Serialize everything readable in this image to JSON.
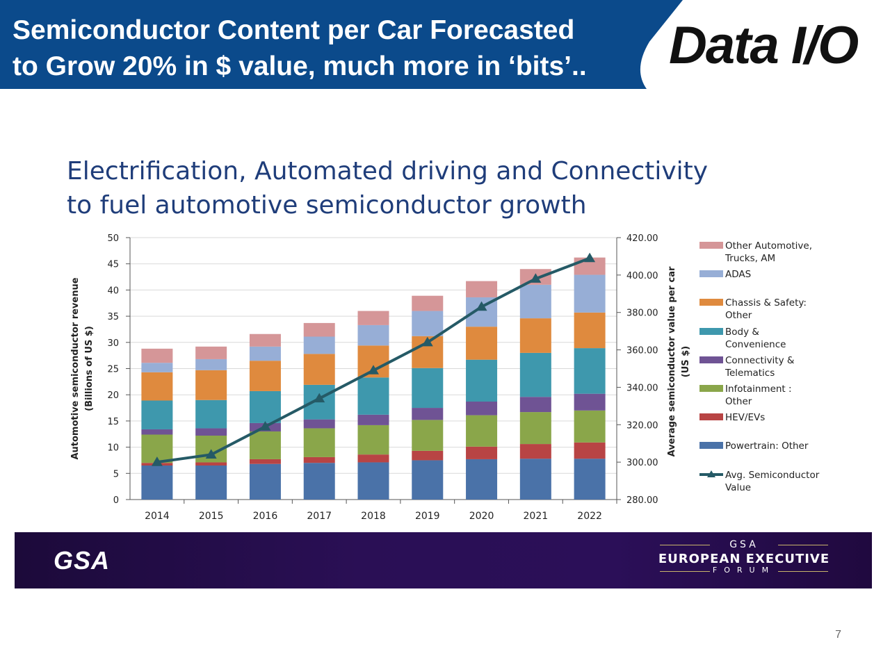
{
  "slide": {
    "header_line1": "Semiconductor Content per Car Forecasted",
    "header_line2": "to Grow 20% in $ value, much more in ‘bits’..",
    "header_color": "#0b4a8b",
    "logo_text": "Data I/O",
    "page_number": "7"
  },
  "footer": {
    "left_logo": "GSA",
    "line1": "GSA",
    "line2": "EUROPEAN EXECUTIVE",
    "line3": "FORUM"
  },
  "chart_data": {
    "type": "bar",
    "stacked": true,
    "title_line1": "Electrification, Automated driving and Connectivity",
    "title_line2": "to fuel automotive semiconductor growth",
    "categories": [
      "2014",
      "2015",
      "2016",
      "2017",
      "2018",
      "2019",
      "2020",
      "2021",
      "2022"
    ],
    "ylabel_line1": "Automotive semiconductor revenue",
    "ylabel_line2": "(Billions of US $)",
    "ylim": [
      0,
      50
    ],
    "yticks": [
      "0",
      "5",
      "10",
      "15",
      "20",
      "25",
      "30",
      "35",
      "40",
      "45",
      "50"
    ],
    "y2label_line1": "Average semiconductor value per car",
    "y2label_line2": "(US $)",
    "y2lim": [
      280,
      420
    ],
    "y2ticks": [
      "280.00",
      "300.00",
      "320.00",
      "340.00",
      "360.00",
      "380.00",
      "400.00",
      "420.00"
    ],
    "grid": true,
    "legend_position": "right",
    "series": [
      {
        "name": "Powertrain: Other",
        "color": "#4a72a8",
        "values": [
          6.5,
          6.5,
          6.8,
          7.0,
          7.1,
          7.5,
          7.7,
          7.8,
          7.8
        ]
      },
      {
        "name": "HEV/EVs",
        "color": "#b84444",
        "values": [
          0.5,
          0.6,
          0.9,
          1.1,
          1.5,
          1.8,
          2.4,
          2.8,
          3.1
        ]
      },
      {
        "name": "Infotainment : Other",
        "color": "#8aa64a",
        "values": [
          5.4,
          5.1,
          5.3,
          5.5,
          5.6,
          5.9,
          6.0,
          6.1,
          6.1
        ]
      },
      {
        "name": "Connectivity & Telematics",
        "color": "#6f5394",
        "values": [
          1.0,
          1.4,
          1.6,
          1.7,
          2.0,
          2.3,
          2.6,
          2.9,
          3.2
        ]
      },
      {
        "name": "Body & Convenience",
        "color": "#3e98ad",
        "values": [
          5.5,
          5.4,
          6.1,
          6.6,
          7.1,
          7.6,
          8.0,
          8.4,
          8.7
        ]
      },
      {
        "name": "Chassis & Safety: Other",
        "color": "#df8a3e",
        "values": [
          5.4,
          5.7,
          5.8,
          5.9,
          6.1,
          6.1,
          6.3,
          6.6,
          6.8
        ]
      },
      {
        "name": "ADAS",
        "color": "#97aed6",
        "values": [
          1.8,
          2.1,
          2.7,
          3.3,
          3.9,
          4.8,
          5.6,
          6.4,
          7.2
        ]
      },
      {
        "name": "Other Automotive, Trucks, AM",
        "color": "#d59698",
        "values": [
          2.7,
          2.4,
          2.4,
          2.6,
          2.7,
          2.9,
          3.1,
          3.0,
          3.3
        ]
      }
    ],
    "line_series": {
      "name": "Avg. Semiconductor Value",
      "color": "#255a66",
      "axis": "right",
      "values": [
        300,
        304,
        319,
        334,
        349,
        364,
        383,
        398,
        409
      ]
    },
    "legend": [
      {
        "lines": [
          "Other Automotive,",
          "Trucks, AM"
        ],
        "color": "#d59698",
        "kind": "box"
      },
      {
        "lines": [
          "ADAS"
        ],
        "color": "#97aed6",
        "kind": "box"
      },
      {
        "lines": [
          "Chassis & Safety:",
          "Other"
        ],
        "color": "#df8a3e",
        "kind": "box"
      },
      {
        "lines": [
          "Body &",
          "Convenience"
        ],
        "color": "#3e98ad",
        "kind": "box"
      },
      {
        "lines": [
          "Connectivity &",
          "Telematics"
        ],
        "color": "#6f5394",
        "kind": "box"
      },
      {
        "lines": [
          "Infotainment :",
          "Other"
        ],
        "color": "#8aa64a",
        "kind": "box"
      },
      {
        "lines": [
          "HEV/EVs"
        ],
        "color": "#b84444",
        "kind": "box"
      },
      {
        "lines": [
          "Powertrain: Other"
        ],
        "color": "#4a72a8",
        "kind": "box"
      },
      {
        "lines": [
          "Avg. Semiconductor",
          "Value"
        ],
        "color": "#255a66",
        "kind": "line"
      }
    ]
  }
}
